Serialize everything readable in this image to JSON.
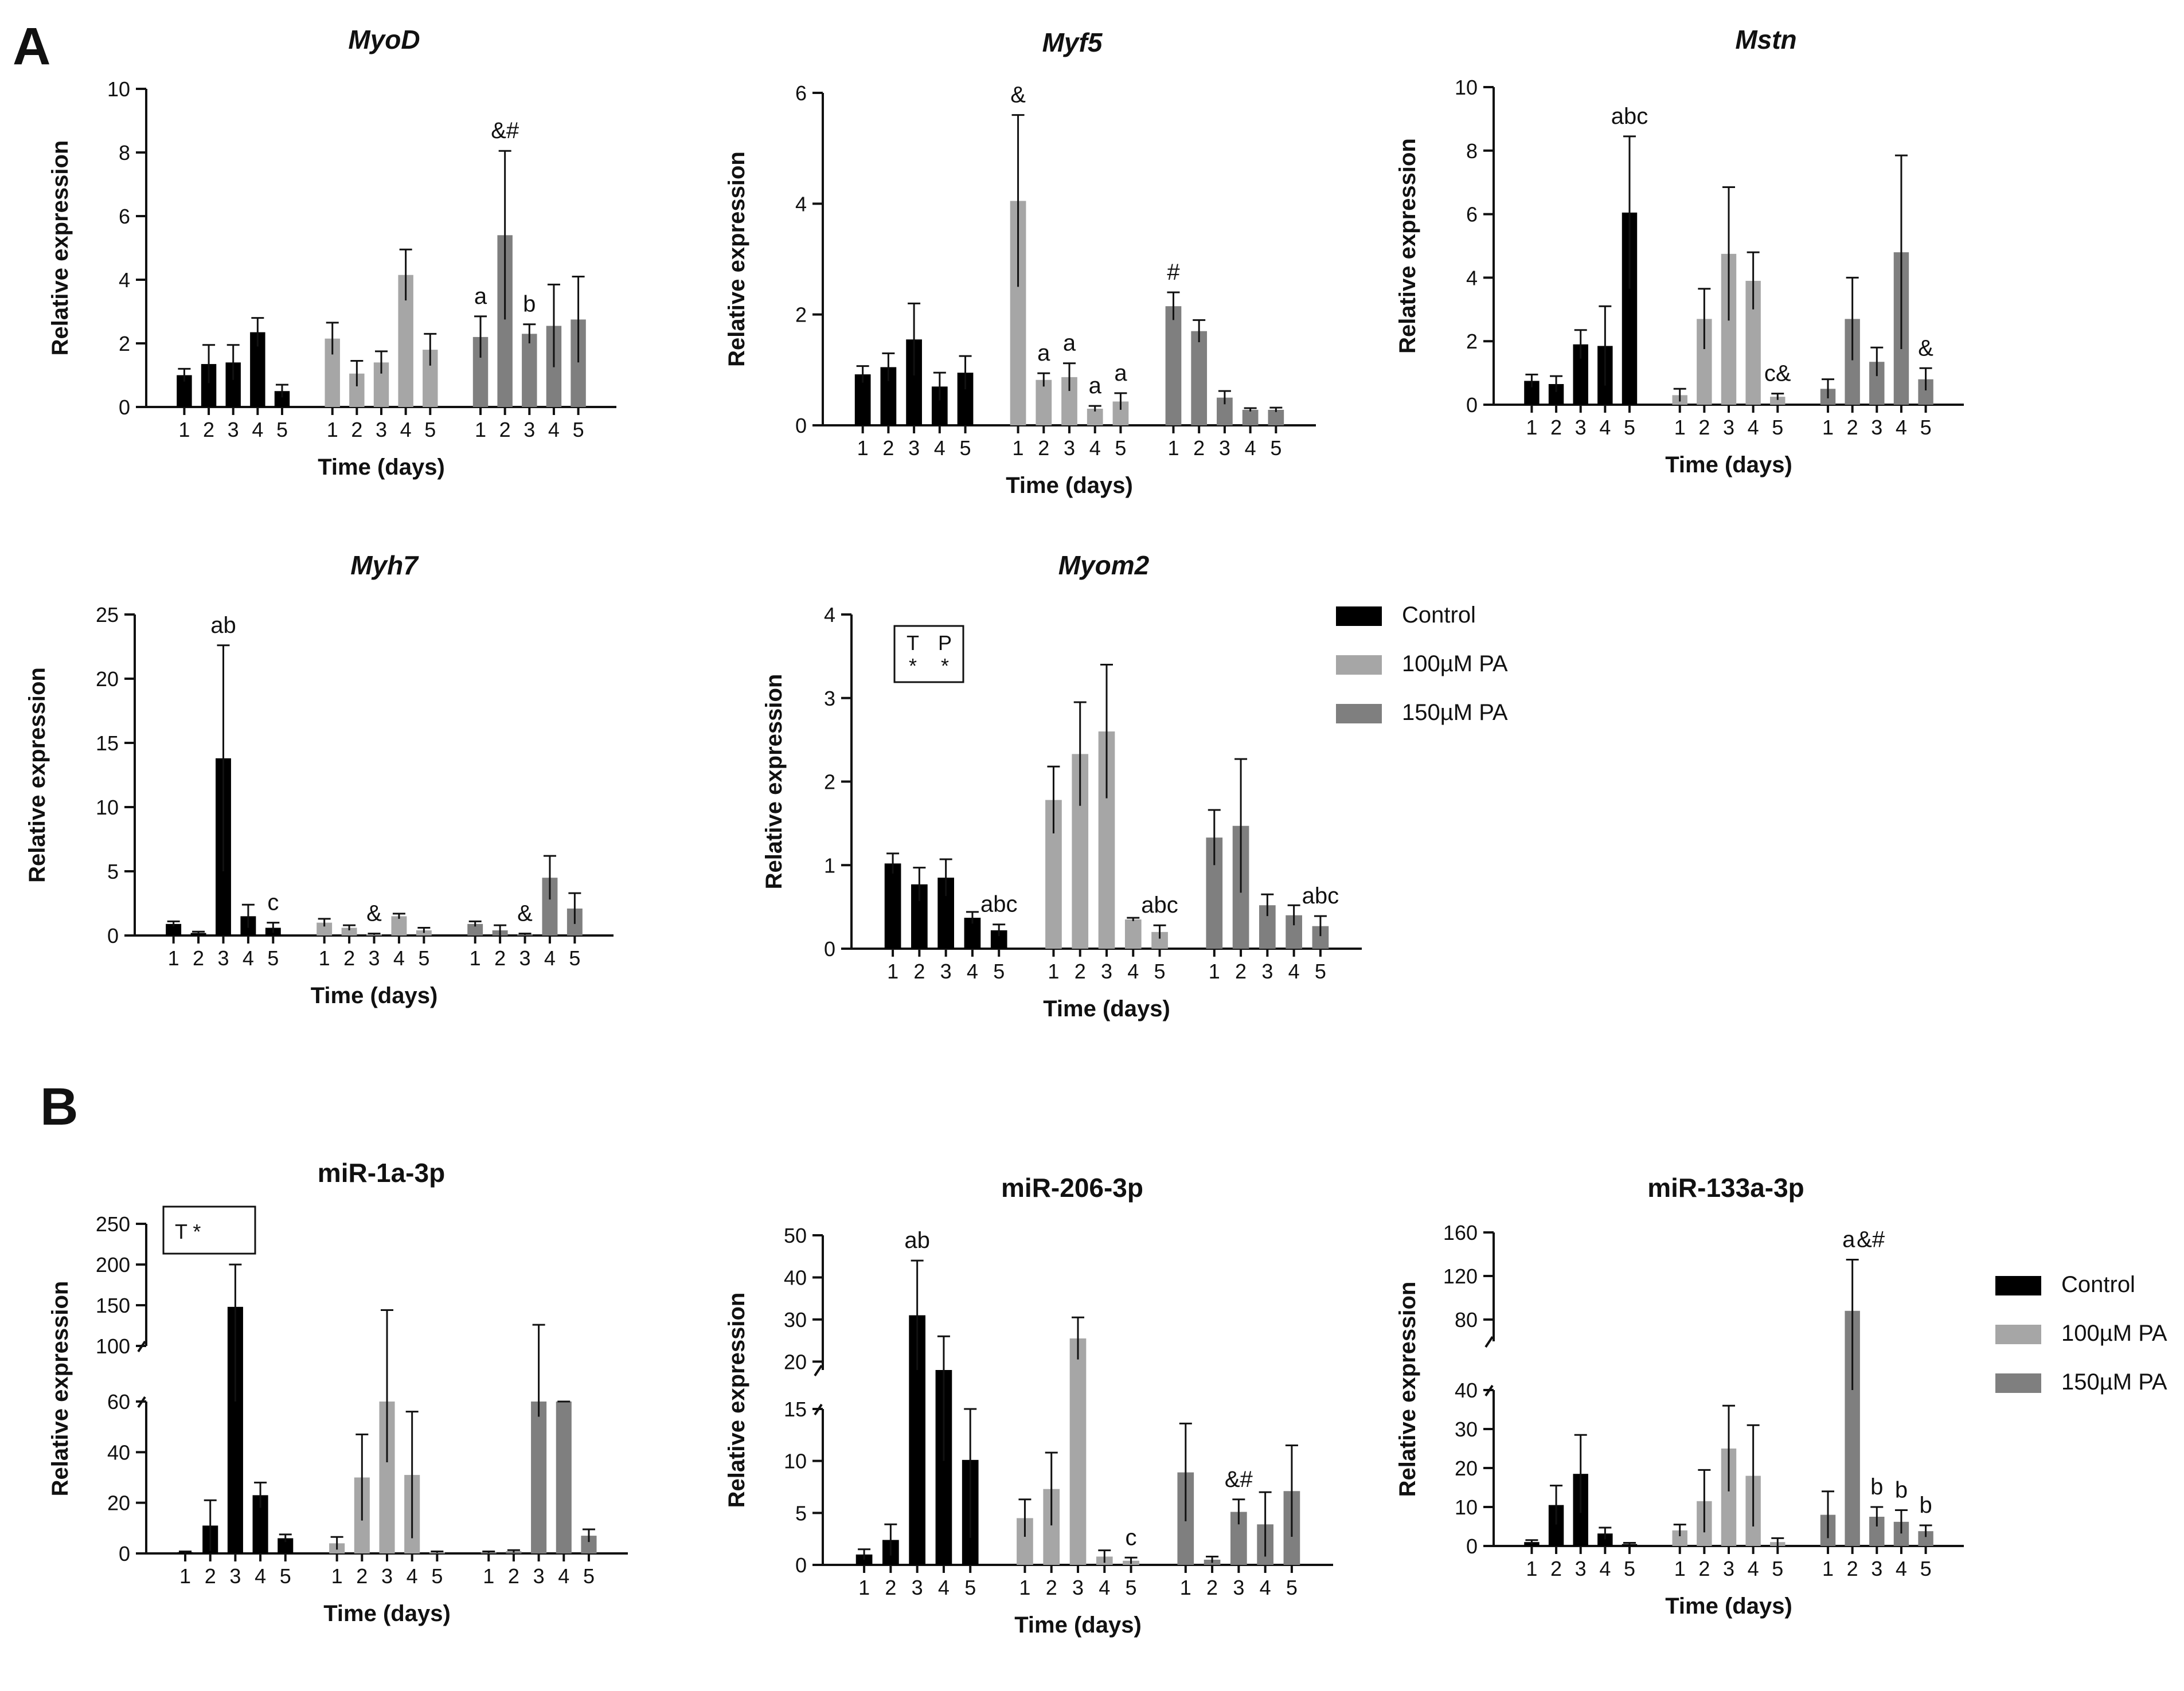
{
  "figure": {
    "panel_a_label": "A",
    "panel_b_label": "B",
    "legend": [
      {
        "label": "Control",
        "color": "#000000"
      },
      {
        "label": "100µM PA",
        "color": "#a6a6a6"
      },
      {
        "label": "150µM PA",
        "color": "#7f7f7f"
      }
    ]
  },
  "chart_data": [
    {
      "id": "myod",
      "type": "bar",
      "title": "MyoD",
      "italic": true,
      "xlabel": "Time (days)",
      "ylabel": "Relative expression",
      "categories": [
        "1",
        "2",
        "3",
        "4",
        "5"
      ],
      "ylim": [
        0,
        10
      ],
      "yticks": [
        0,
        2,
        4,
        6,
        8,
        10
      ],
      "series": [
        {
          "name": "Control",
          "values": [
            1.0,
            1.35,
            1.4,
            2.35,
            0.5
          ],
          "errors": [
            0.2,
            0.6,
            0.55,
            0.45,
            0.2
          ]
        },
        {
          "name": "100µM PA",
          "values": [
            2.15,
            1.05,
            1.4,
            4.15,
            1.8
          ],
          "errors": [
            0.5,
            0.4,
            0.35,
            0.8,
            0.5
          ]
        },
        {
          "name": "150µM PA",
          "values": [
            2.2,
            5.4,
            2.3,
            2.55,
            2.75
          ],
          "errors": [
            0.65,
            2.65,
            0.3,
            1.3,
            1.35
          ]
        }
      ],
      "annotations": [
        {
          "series": 2,
          "index": 0,
          "text": "a"
        },
        {
          "series": 2,
          "index": 1,
          "text": "&#"
        },
        {
          "series": 2,
          "index": 2,
          "text": "b"
        }
      ]
    },
    {
      "id": "myf5",
      "type": "bar",
      "title": "Myf5",
      "italic": true,
      "xlabel": "Time (days)",
      "ylabel": "Relative expression",
      "categories": [
        "1",
        "2",
        "3",
        "4",
        "5"
      ],
      "ylim": [
        0,
        6
      ],
      "yticks": [
        0,
        2,
        4,
        6
      ],
      "series": [
        {
          "name": "Control",
          "values": [
            0.92,
            1.05,
            1.55,
            0.7,
            0.95
          ],
          "errors": [
            0.15,
            0.25,
            0.65,
            0.25,
            0.3
          ]
        },
        {
          "name": "100µM PA",
          "values": [
            4.05,
            0.82,
            0.87,
            0.3,
            0.43
          ],
          "errors": [
            1.55,
            0.12,
            0.25,
            0.05,
            0.15
          ]
        },
        {
          "name": "150µM PA",
          "values": [
            2.15,
            1.7,
            0.5,
            0.28,
            0.28
          ],
          "errors": [
            0.25,
            0.2,
            0.12,
            0.03,
            0.04
          ]
        }
      ],
      "annotations": [
        {
          "series": 1,
          "index": 0,
          "text": "&"
        },
        {
          "series": 1,
          "index": 1,
          "text": "a"
        },
        {
          "series": 1,
          "index": 2,
          "text": "a"
        },
        {
          "series": 1,
          "index": 3,
          "text": "a"
        },
        {
          "series": 1,
          "index": 4,
          "text": "a"
        },
        {
          "series": 2,
          "index": 0,
          "text": "#"
        }
      ]
    },
    {
      "id": "mstn",
      "type": "bar",
      "title": "Mstn",
      "italic": true,
      "xlabel": "Time (days)",
      "ylabel": "Relative expression",
      "categories": [
        "1",
        "2",
        "3",
        "4",
        "5"
      ],
      "ylim": [
        0,
        10
      ],
      "yticks": [
        0,
        2,
        4,
        6,
        8,
        10
      ],
      "series": [
        {
          "name": "Control",
          "values": [
            0.75,
            0.65,
            1.9,
            1.85,
            6.05
          ],
          "errors": [
            0.2,
            0.25,
            0.45,
            1.25,
            2.4
          ]
        },
        {
          "name": "100µM PA",
          "values": [
            0.3,
            2.7,
            4.75,
            3.9,
            0.25
          ],
          "errors": [
            0.2,
            0.95,
            2.1,
            0.9,
            0.1
          ]
        },
        {
          "name": "150µM PA",
          "values": [
            0.5,
            2.7,
            1.35,
            4.8,
            0.8
          ],
          "errors": [
            0.3,
            1.3,
            0.45,
            3.05,
            0.35
          ]
        }
      ],
      "annotations": [
        {
          "series": 0,
          "index": 4,
          "text": "abc"
        },
        {
          "series": 1,
          "index": 4,
          "text": "c&"
        },
        {
          "series": 2,
          "index": 4,
          "text": "&"
        }
      ]
    },
    {
      "id": "myh7",
      "type": "bar",
      "title": "Myh7",
      "italic": true,
      "xlabel": "Time (days)",
      "ylabel": "Relative expression",
      "categories": [
        "1",
        "2",
        "3",
        "4",
        "5"
      ],
      "ylim": [
        0,
        25
      ],
      "yticks": [
        0,
        5,
        10,
        15,
        20,
        25
      ],
      "series": [
        {
          "name": "Control",
          "values": [
            0.9,
            0.2,
            13.8,
            1.5,
            0.6
          ],
          "errors": [
            0.2,
            0.1,
            8.8,
            0.9,
            0.4
          ]
        },
        {
          "name": "100µM PA",
          "values": [
            1.0,
            0.6,
            0.1,
            1.5,
            0.4
          ],
          "errors": [
            0.3,
            0.2,
            0.05,
            0.2,
            0.2
          ]
        },
        {
          "name": "150µM PA",
          "values": [
            0.9,
            0.4,
            0.1,
            4.5,
            2.1
          ],
          "errors": [
            0.2,
            0.4,
            0.05,
            1.7,
            1.2
          ]
        }
      ],
      "annotations": [
        {
          "series": 0,
          "index": 2,
          "text": "ab"
        },
        {
          "series": 0,
          "index": 4,
          "text": "c"
        },
        {
          "series": 1,
          "index": 2,
          "text": "&"
        },
        {
          "series": 2,
          "index": 2,
          "text": "&"
        }
      ]
    },
    {
      "id": "myom2",
      "type": "bar",
      "title": "Myom2",
      "italic": true,
      "xlabel": "Time (days)",
      "ylabel": "Relative expression",
      "categories": [
        "1",
        "2",
        "3",
        "4",
        "5"
      ],
      "ylim": [
        0,
        4
      ],
      "yticks": [
        0,
        1,
        2,
        3,
        4
      ],
      "stats_box": [
        "T",
        "P",
        "*",
        "*"
      ],
      "series": [
        {
          "name": "Control",
          "values": [
            1.02,
            0.77,
            0.85,
            0.37,
            0.22
          ],
          "errors": [
            0.12,
            0.2,
            0.22,
            0.07,
            0.07
          ]
        },
        {
          "name": "100µM PA",
          "values": [
            1.78,
            2.33,
            2.6,
            0.35,
            0.2
          ],
          "errors": [
            0.4,
            0.62,
            0.8,
            0.02,
            0.08
          ]
        },
        {
          "name": "150µM PA",
          "values": [
            1.33,
            1.47,
            0.52,
            0.4,
            0.27
          ],
          "errors": [
            0.33,
            0.8,
            0.13,
            0.12,
            0.12
          ]
        }
      ],
      "annotations": [
        {
          "series": 0,
          "index": 4,
          "text": "abc"
        },
        {
          "series": 1,
          "index": 4,
          "text": "abc"
        },
        {
          "series": 2,
          "index": 4,
          "text": "abc"
        }
      ]
    },
    {
      "id": "mir1",
      "type": "bar",
      "title": "miR-1a-3p",
      "italic": false,
      "xlabel": "Time (days)",
      "ylabel": "Relative expression",
      "categories": [
        "1",
        "2",
        "3",
        "4",
        "5"
      ],
      "broken_axis": {
        "lower": [
          0,
          60
        ],
        "upper": [
          100,
          250
        ]
      },
      "yticks_lower": [
        0,
        20,
        40,
        60
      ],
      "yticks_upper": [
        100,
        150,
        200,
        250
      ],
      "stats_box": [
        "T *"
      ],
      "series": [
        {
          "name": "Control",
          "values": [
            0.5,
            11,
            148,
            23,
            6
          ],
          "errors": [
            0.3,
            10,
            52,
            5,
            1.5
          ]
        },
        {
          "name": "100µM PA",
          "values": [
            4,
            30,
            90,
            31,
            0.5
          ],
          "errors": [
            2.5,
            17,
            54,
            25,
            0.3
          ]
        },
        {
          "name": "150µM PA",
          "values": [
            0.5,
            0.8,
            90,
            87,
            7
          ],
          "errors": [
            0.3,
            0.5,
            36,
            5,
            2.5
          ]
        }
      ],
      "annotations": []
    },
    {
      "id": "mir206",
      "type": "bar",
      "title": "miR-206-3p",
      "italic": false,
      "xlabel": "Time (days)",
      "ylabel": "Relative expression",
      "categories": [
        "1",
        "2",
        "3",
        "4",
        "5"
      ],
      "broken_axis": {
        "lower": [
          0,
          15
        ],
        "upper": [
          18,
          50
        ]
      },
      "yticks_lower": [
        0,
        5,
        10,
        15
      ],
      "yticks_upper": [
        20,
        30,
        40,
        50
      ],
      "series": [
        {
          "name": "Control",
          "values": [
            1.0,
            2.4,
            31,
            18,
            10.1
          ],
          "errors": [
            0.5,
            1.5,
            13,
            8,
            7.5
          ]
        },
        {
          "name": "100µM PA",
          "values": [
            4.5,
            7.3,
            25.5,
            0.8,
            0.4
          ],
          "errors": [
            1.8,
            3.5,
            5,
            0.6,
            0.3
          ]
        },
        {
          "name": "150µM PA",
          "values": [
            8.9,
            0.5,
            5.1,
            3.9,
            7.1
          ],
          "errors": [
            4.7,
            0.3,
            1.2,
            3.1,
            4.4
          ]
        }
      ],
      "annotations": [
        {
          "series": 0,
          "index": 2,
          "text": "ab"
        },
        {
          "series": 1,
          "index": 4,
          "text": "c"
        },
        {
          "series": 2,
          "index": 2,
          "text": "&#"
        }
      ]
    },
    {
      "id": "mir133",
      "type": "bar",
      "title": "miR-133a-3p",
      "italic": false,
      "xlabel": "Time (days)",
      "ylabel": "Relative expression",
      "categories": [
        "1",
        "2",
        "3",
        "4",
        "5"
      ],
      "broken_axis": {
        "lower": [
          0,
          40
        ],
        "upper": [
          60,
          160
        ]
      },
      "yticks_lower": [
        0,
        10,
        20,
        30,
        40
      ],
      "yticks_upper": [
        80,
        120,
        160
      ],
      "series": [
        {
          "name": "Control",
          "values": [
            1.0,
            10.5,
            18.5,
            3.2,
            0.5
          ],
          "errors": [
            0.5,
            5,
            10,
            1.5,
            0.3
          ]
        },
        {
          "name": "100µM PA",
          "values": [
            4,
            11.5,
            25,
            18,
            1.0
          ],
          "errors": [
            1.5,
            8,
            11,
            13,
            1.0
          ]
        },
        {
          "name": "150µM PA",
          "values": [
            8,
            88,
            7.5,
            6.2,
            3.8
          ],
          "errors": [
            6,
            47,
            2.5,
            3,
            1.5
          ]
        }
      ],
      "annotations": [
        {
          "series": 2,
          "index": 1,
          "text": "a"
        },
        {
          "series": 2,
          "index": 1,
          "text": "&#",
          "offset": "right"
        },
        {
          "series": 2,
          "index": 2,
          "text": "b"
        },
        {
          "series": 2,
          "index": 3,
          "text": "b"
        },
        {
          "series": 2,
          "index": 4,
          "text": "b"
        }
      ]
    }
  ]
}
